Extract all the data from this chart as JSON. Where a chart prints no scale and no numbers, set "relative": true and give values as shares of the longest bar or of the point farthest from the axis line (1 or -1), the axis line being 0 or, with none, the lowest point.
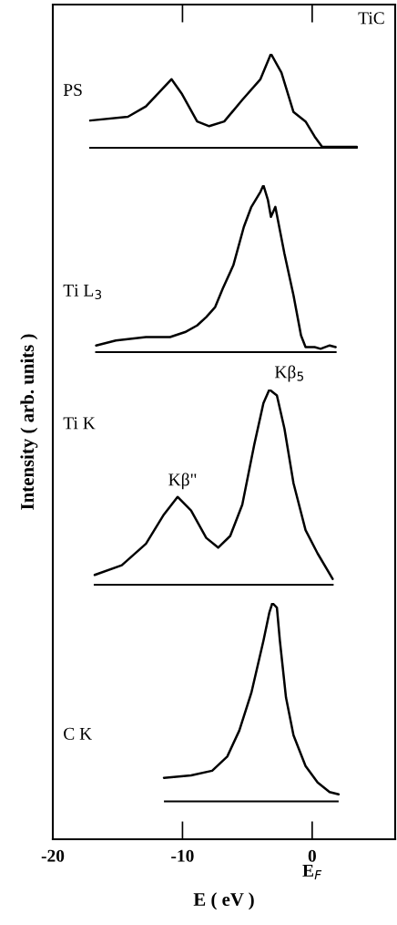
{
  "chart_data": [
    {
      "type": "line",
      "title": "TiC",
      "relative": true,
      "xlim": [
        -20,
        6.4
      ],
      "tick_labels": false,
      "marker": "none",
      "line_style": "solid",
      "series": [
        {
          "name": "PS",
          "color": "#000000",
          "x": [
            -17.12,
            -14.21,
            -12.82,
            -10.85,
            -10.03,
            -8.87,
            -7.94,
            -6.78,
            -5.39,
            -3.99,
            -3.18,
            -2.37,
            -1.44,
            -0.51,
            0.19,
            0.77,
            3.44
          ],
          "values": [
            0.29,
            0.33,
            0.44,
            0.73,
            0.57,
            0.28,
            0.23,
            0.28,
            0.51,
            0.73,
            1.0,
            0.8,
            0.38,
            0.28,
            0.12,
            0.01,
            0.01
          ]
        }
      ]
    },
    {
      "type": "line",
      "relative": true,
      "xlim": [
        -20,
        6.4
      ],
      "tick_labels": false,
      "marker": "none",
      "line_style": "solid",
      "series": [
        {
          "name": "Ti L$_{3}$",
          "color": "#000000",
          "x": [
            -16.66,
            -15.14,
            -12.82,
            -10.96,
            -9.8,
            -8.87,
            -8.17,
            -7.48,
            -6.9,
            -6.08,
            -5.27,
            -4.69,
            -3.99,
            -3.76,
            -3.41,
            -3.18,
            -2.84,
            -2.14,
            -1.44,
            -0.86,
            -0.51,
            0.19,
            0.65,
            1.35,
            1.81
          ],
          "values": [
            0.04,
            0.07,
            0.09,
            0.09,
            0.12,
            0.16,
            0.21,
            0.27,
            0.38,
            0.52,
            0.75,
            0.87,
            0.96,
            1.0,
            0.91,
            0.81,
            0.87,
            0.59,
            0.34,
            0.1,
            0.03,
            0.03,
            0.02,
            0.04,
            0.03
          ]
        }
      ]
    },
    {
      "type": "line",
      "relative": true,
      "xlim": [
        -20,
        6.4
      ],
      "tick_labels": false,
      "marker": "none",
      "line_style": "solid",
      "series": [
        {
          "name": "Ti K",
          "color": "#000000",
          "x": [
            -16.77,
            -14.68,
            -12.82,
            -11.43,
            -10.38,
            -9.34,
            -8.17,
            -7.25,
            -6.32,
            -5.39,
            -4.46,
            -3.76,
            -3.3,
            -2.72,
            -2.14,
            -1.44,
            -0.51,
            0.42,
            1.58
          ],
          "values": [
            0.05,
            0.1,
            0.21,
            0.36,
            0.45,
            0.38,
            0.24,
            0.19,
            0.25,
            0.41,
            0.72,
            0.93,
            1.0,
            0.97,
            0.8,
            0.52,
            0.28,
            0.16,
            0.03
          ]
        }
      ],
      "annotations": [
        {
          "text": "Kβ\"",
          "x": -10.38,
          "y": 0.45
        },
        {
          "text": "Kβ$_{5}$",
          "x": -3.3,
          "y": 1.0
        }
      ]
    },
    {
      "type": "line",
      "relative": true,
      "xlim": [
        -20,
        6.4
      ],
      "xticks": [
        -20,
        -10,
        {
          "value": 0,
          "label": "0\nE$_{F}$"
        }
      ],
      "xlabel": "E ( eV )",
      "ylabel": "Intensity ( arb. units )",
      "tick_labels": "x",
      "marker": "none",
      "line_style": "solid",
      "series": [
        {
          "name": "C K",
          "color": "#000000",
          "x": [
            -11.43,
            -9.34,
            -7.71,
            -6.55,
            -5.62,
            -4.69,
            -3.76,
            -3.3,
            -3.07,
            -2.72,
            -2.49,
            -2.02,
            -1.44,
            -0.51,
            0.42,
            1.34,
            2.04
          ],
          "values": [
            0.26,
            0.27,
            0.29,
            0.35,
            0.46,
            0.62,
            0.84,
            0.96,
            1.0,
            0.98,
            0.84,
            0.6,
            0.44,
            0.31,
            0.24,
            0.2,
            0.19
          ]
        }
      ],
      "ref_lines": [
        {
          "axis": "y",
          "value": 0.16,
          "color": "#000000",
          "line_style": "solid"
        }
      ]
    }
  ]
}
